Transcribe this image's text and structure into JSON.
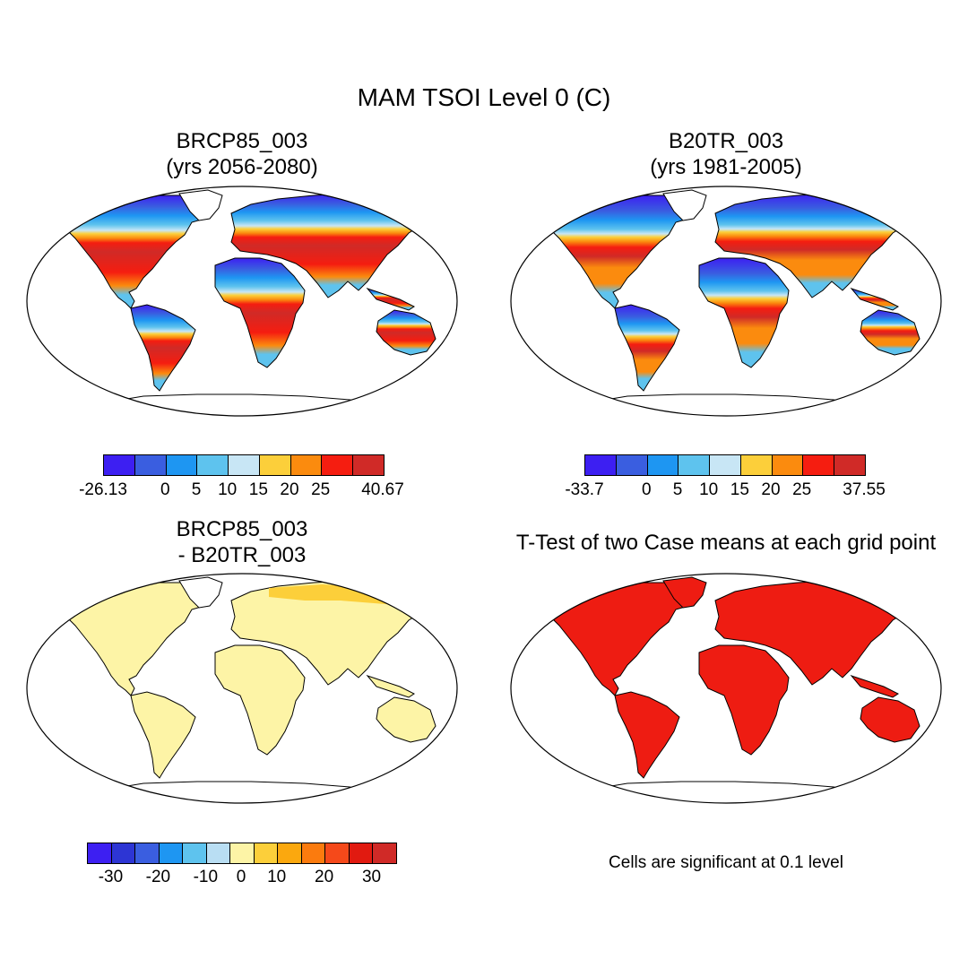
{
  "figure": {
    "title": "MAM TSOI Level 0 (C)"
  },
  "panels": [
    {
      "title_line1": "BRCP85_003",
      "title_line2": "(yrs 2056-2080)"
    },
    {
      "title_line1": "B20TR_003",
      "title_line2": "(yrs 1981-2005)"
    },
    {
      "title_line1": "BRCP85_003",
      "title_line2": "- B20TR_003"
    },
    {
      "title_line1": "T-Test of two Case means at each grid point",
      "title_line2": ""
    }
  ],
  "colorbars": {
    "top_left": {
      "colors": [
        "#3d1ff2",
        "#3a5ee0",
        "#1e96f2",
        "#5ec3ee",
        "#c8e6f5",
        "#fccf3a",
        "#fb8b0e",
        "#f51d10",
        "#d02a27"
      ],
      "ticks": [
        "-26.13",
        "0",
        "5",
        "10",
        "15",
        "20",
        "25",
        "40.67"
      ]
    },
    "top_right": {
      "colors": [
        "#3d1ff2",
        "#3a5ee0",
        "#1e96f2",
        "#5ec3ee",
        "#c8e6f5",
        "#fccf3a",
        "#fb8b0e",
        "#f51d10",
        "#d02a27"
      ],
      "ticks": [
        "-33.7",
        "0",
        "5",
        "10",
        "15",
        "20",
        "25",
        "37.55"
      ]
    },
    "bottom_left": {
      "colors": [
        "#3d1ff2",
        "#2d35d4",
        "#3a5ee0",
        "#1e96f2",
        "#5ec3ee",
        "#b9def3",
        "#fdf4a6",
        "#fccf3a",
        "#fba80e",
        "#fb7b0e",
        "#f5491a",
        "#e11a10",
        "#d02a27"
      ],
      "ticks": [
        "-30",
        "-20",
        "-10",
        "0",
        "10",
        "20",
        "30"
      ]
    }
  },
  "map_fill": {
    "diff_land": "#fdf4a6",
    "diff_warm": "#fccf3a",
    "ttest_land": "#ee1c12"
  },
  "note": "Cells are significant at 0.1 level"
}
